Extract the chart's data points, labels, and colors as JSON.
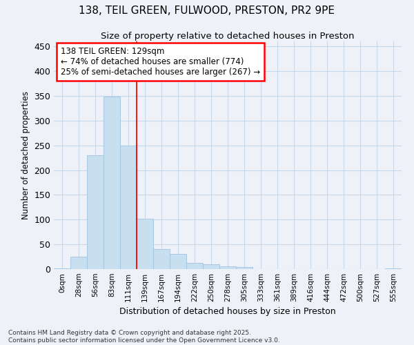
{
  "title1": "138, TEIL GREEN, FULWOOD, PRESTON, PR2 9PE",
  "title2": "Size of property relative to detached houses in Preston",
  "xlabel": "Distribution of detached houses by size in Preston",
  "ylabel": "Number of detached properties",
  "bar_labels": [
    "0sqm",
    "28sqm",
    "56sqm",
    "83sqm",
    "111sqm",
    "139sqm",
    "167sqm",
    "194sqm",
    "222sqm",
    "250sqm",
    "278sqm",
    "305sqm",
    "333sqm",
    "361sqm",
    "389sqm",
    "416sqm",
    "444sqm",
    "472sqm",
    "500sqm",
    "527sqm",
    "555sqm"
  ],
  "bar_heights": [
    2,
    25,
    230,
    348,
    250,
    102,
    40,
    30,
    13,
    10,
    5,
    4,
    0,
    0,
    0,
    0,
    0,
    0,
    0,
    0,
    2
  ],
  "bar_color": "#c8dff0",
  "bar_edge_color": "#a0c4e0",
  "line_x_index": 4.5,
  "annotation_line1": "138 TEIL GREEN: 129sqm",
  "annotation_line2": "← 74% of detached houses are smaller (774)",
  "annotation_line3": "25% of semi-detached houses are larger (267) →",
  "annotation_box_color": "white",
  "annotation_box_edge_color": "red",
  "vline_color": "red",
  "grid_color": "#c8d8ec",
  "background_color": "#eef2f8",
  "footer_line1": "Contains HM Land Registry data © Crown copyright and database right 2025.",
  "footer_line2": "Contains public sector information licensed under the Open Government Licence v3.0.",
  "ylim": [
    0,
    460
  ],
  "xlim": [
    -0.5,
    20.5
  ],
  "yticks": [
    0,
    50,
    100,
    150,
    200,
    250,
    300,
    350,
    400,
    450
  ]
}
